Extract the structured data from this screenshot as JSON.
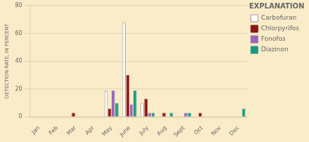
{
  "chart_data": {
    "type": "bar",
    "categories": [
      "Jan",
      "Feb",
      "Mar",
      "Apr",
      "May",
      "June",
      "July",
      "Aug",
      "Sept",
      "Oct",
      "Nov",
      "Dec"
    ],
    "series": [
      {
        "name": "Carbofuran",
        "color": "#ffffff",
        "values": [
          0,
          0,
          0,
          0,
          19,
          68,
          10,
          0,
          0,
          0,
          0,
          0
        ]
      },
      {
        "name": "Chlorpyrifos",
        "color": "#8b1515",
        "values": [
          0,
          0,
          3,
          0,
          6,
          30,
          13,
          3,
          0,
          3,
          0,
          0
        ]
      },
      {
        "name": "Fonofos",
        "color": "#9966bb",
        "values": [
          0,
          0,
          0,
          0,
          19,
          9,
          3,
          0,
          3,
          0,
          0,
          0
        ]
      },
      {
        "name": "Diazinon",
        "color": "#1a9980",
        "values": [
          0,
          0,
          0,
          0,
          10,
          19,
          3,
          3,
          3,
          0,
          0,
          6
        ]
      }
    ],
    "ylabel": "DETECTION RATE, IN PERCENT",
    "legend_title": "EXPLANATION",
    "legend": "right",
    "ylim": [
      0,
      80
    ],
    "yticks": [
      0,
      20,
      40,
      60,
      80
    ],
    "grid": true
  }
}
